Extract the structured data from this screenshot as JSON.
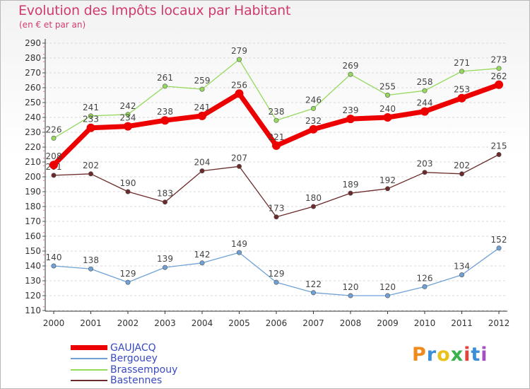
{
  "header": {
    "title": "Evolution des Impôts locaux par Habitant",
    "subtitle": "(en € et par an)"
  },
  "chart_data": {
    "type": "line",
    "x": [
      "2000",
      "2001",
      "2002",
      "2003",
      "2004",
      "2005",
      "2006",
      "2007",
      "2008",
      "2009",
      "2010",
      "2011",
      "2012"
    ],
    "yticks": [
      110,
      120,
      130,
      140,
      150,
      160,
      170,
      180,
      190,
      200,
      210,
      220,
      230,
      240,
      250,
      260,
      270,
      280,
      290
    ],
    "ylim": [
      110,
      290
    ],
    "grid": true,
    "series": [
      {
        "name": "GAUJACQ",
        "color": "#ec0000",
        "values": [
          208,
          233,
          234,
          238,
          241,
          256,
          221,
          232,
          239,
          240,
          244,
          253,
          262
        ]
      },
      {
        "name": "Bergouey",
        "color": "#6fa1d6",
        "values": [
          140,
          138,
          129,
          139,
          142,
          149,
          129,
          122,
          120,
          120,
          126,
          134,
          152
        ]
      },
      {
        "name": "Brassempouy",
        "color": "#95d95d",
        "values": [
          226,
          241,
          242,
          261,
          259,
          279,
          238,
          246,
          269,
          255,
          258,
          271,
          273
        ]
      },
      {
        "name": "Bastennes",
        "color": "#6c2a2a",
        "values": [
          201,
          202,
          190,
          183,
          204,
          207,
          173,
          180,
          189,
          192,
          203,
          202,
          215
        ]
      }
    ]
  },
  "brand": {
    "letters": [
      "P",
      "r",
      "o",
      "x",
      "i",
      "t",
      "i"
    ],
    "colors": [
      "#f08a1c",
      "#3b8fd9",
      "#e8c21b",
      "#38b24a",
      "#e8403a",
      "#3b8fd9",
      "#a44fc2"
    ]
  }
}
